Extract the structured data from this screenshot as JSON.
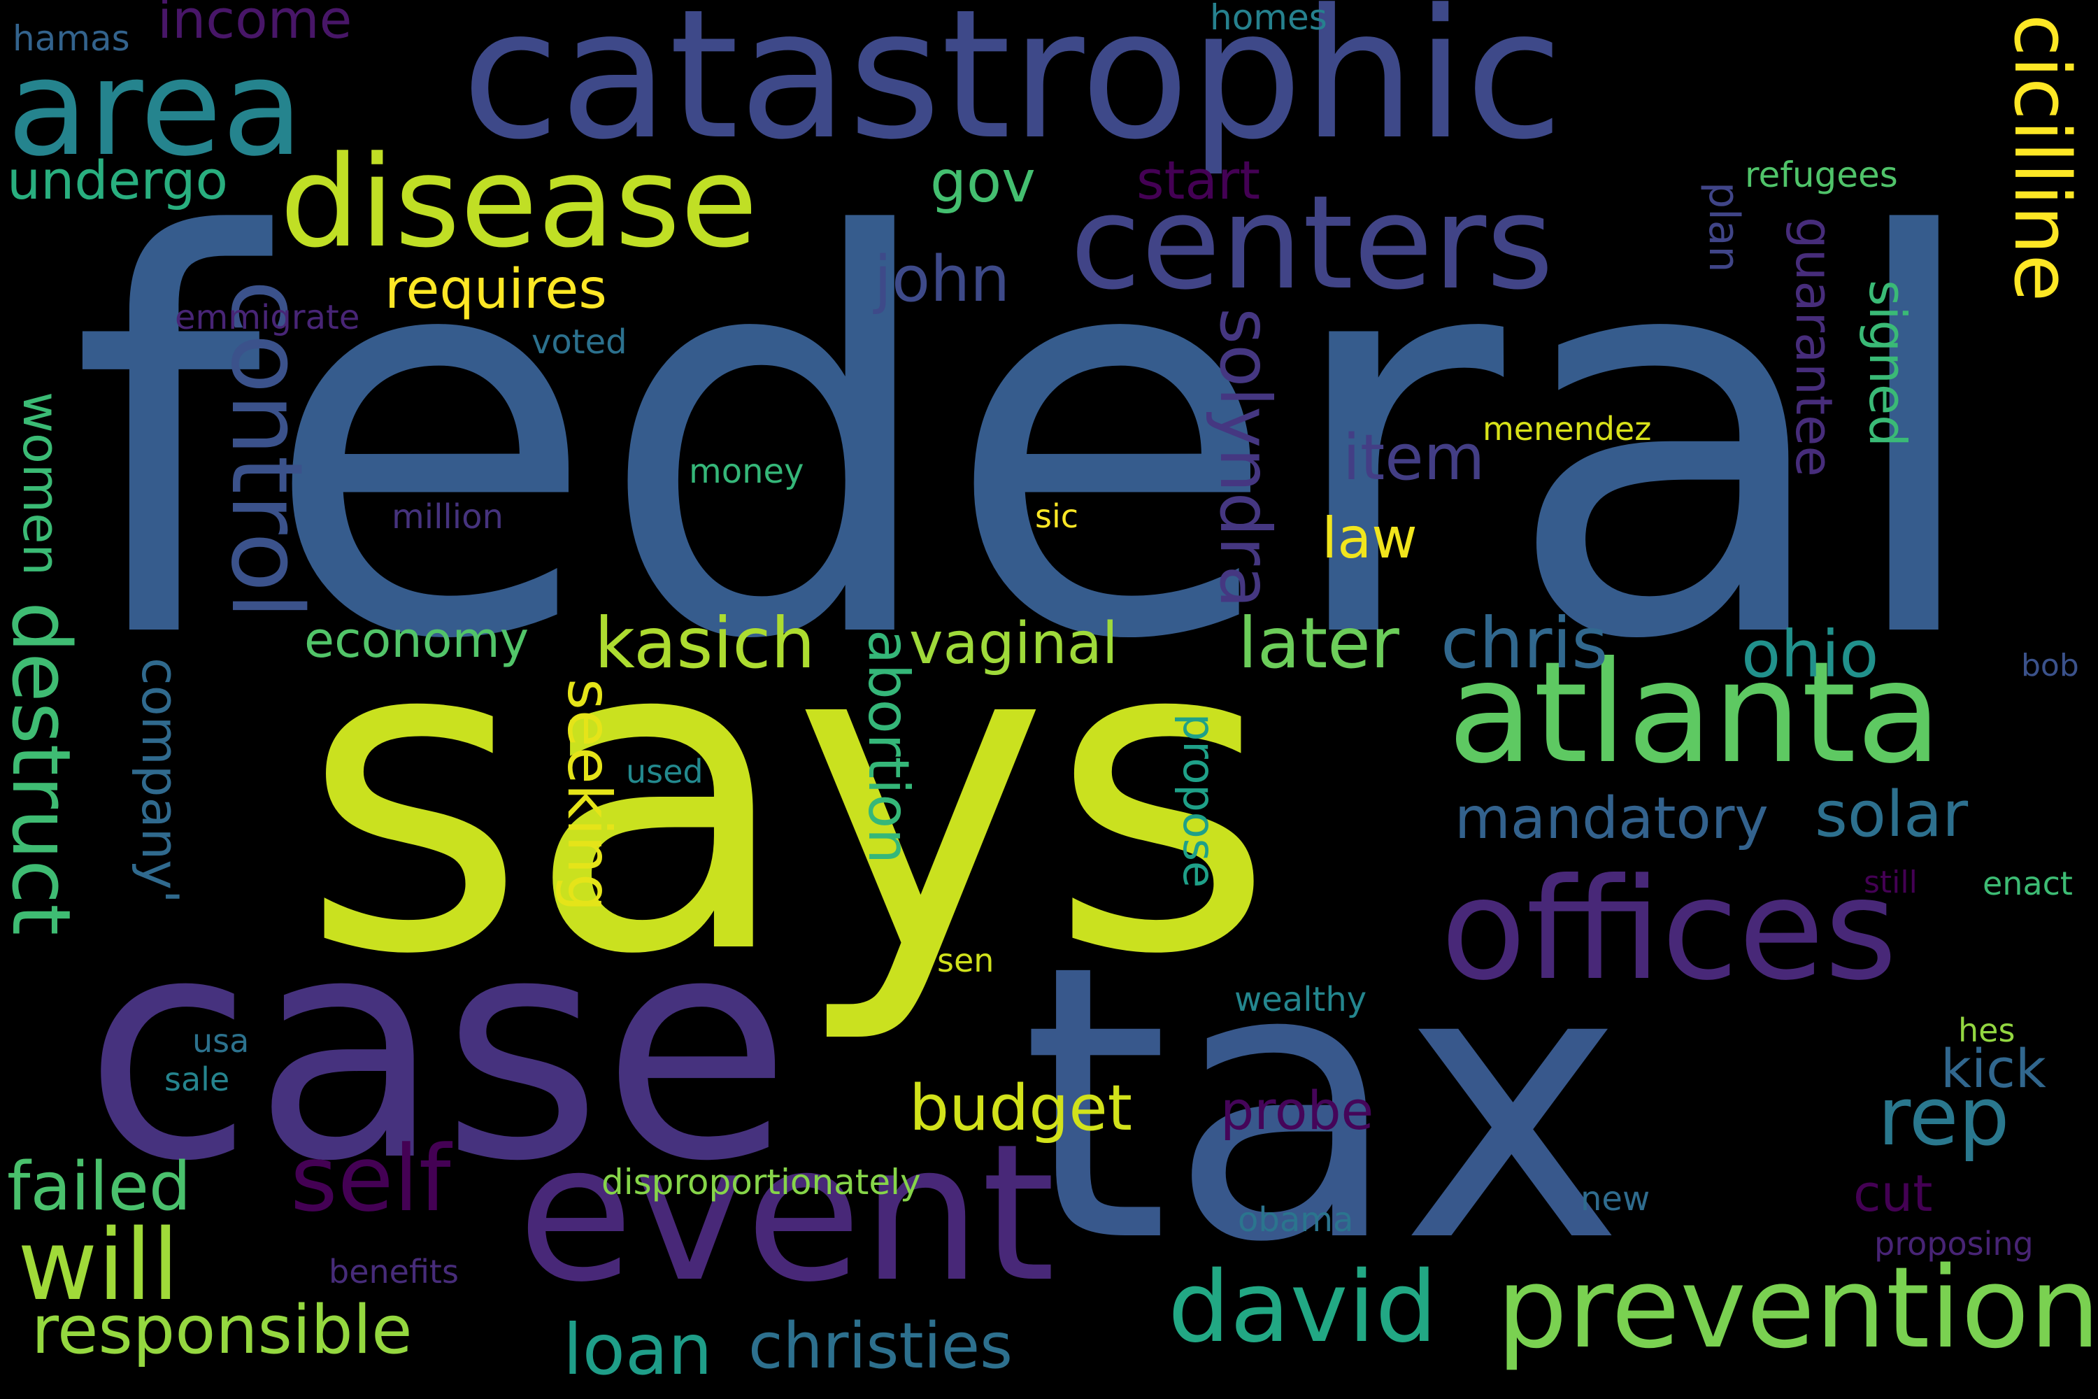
{
  "background": "#000000",
  "words": [
    {
      "text": "federal",
      "color": "#365c8d"
    },
    {
      "text": "says",
      "color": "#cae11f"
    },
    {
      "text": "tax",
      "color": "#38588c"
    },
    {
      "text": "case",
      "color": "#46327e"
    },
    {
      "text": "catastrophic",
      "color": "#3e4989"
    },
    {
      "text": "event",
      "color": "#482878"
    },
    {
      "text": "area",
      "color": "#25848e"
    },
    {
      "text": "disease",
      "color": "#c0df25"
    },
    {
      "text": "centers",
      "color": "#414487"
    },
    {
      "text": "atlanta",
      "color": "#5ec962"
    },
    {
      "text": "offices",
      "color": "#482878"
    },
    {
      "text": "cicilline",
      "color": "#fde725"
    },
    {
      "text": "prevention",
      "color": "#7ad151"
    },
    {
      "text": "control",
      "color": "#3b528b"
    },
    {
      "text": "destruct",
      "color": "#3fbc73"
    },
    {
      "text": "david",
      "color": "#22a884"
    },
    {
      "text": "will",
      "color": "#a0da39"
    },
    {
      "text": "self",
      "color": "#440154"
    },
    {
      "text": "kasich",
      "color": "#addc30"
    },
    {
      "text": "later",
      "color": "#6ccd5a"
    },
    {
      "text": "chris",
      "color": "#31688e"
    },
    {
      "text": "ohio",
      "color": "#21918c"
    },
    {
      "text": "rep",
      "color": "#2a788e"
    },
    {
      "text": "failed",
      "color": "#4ac16d"
    },
    {
      "text": "responsible",
      "color": "#95d840"
    },
    {
      "text": "loan",
      "color": "#1f9e89"
    },
    {
      "text": "christies",
      "color": "#2d708e"
    },
    {
      "text": "budget",
      "color": "#d2e21b"
    },
    {
      "text": "vaginal",
      "color": "#9fda3a"
    },
    {
      "text": "requires",
      "color": "#fde725"
    },
    {
      "text": "john",
      "color": "#3e4a89"
    },
    {
      "text": "item",
      "color": "#433e85"
    },
    {
      "text": "solyndra",
      "color": "#453781"
    },
    {
      "text": "mandatory",
      "color": "#33628d"
    },
    {
      "text": "solar",
      "color": "#2d708e"
    },
    {
      "text": "seeking",
      "color": "#e5e419"
    },
    {
      "text": "abortion",
      "color": "#35b779"
    },
    {
      "text": "law",
      "color": "#f1e51d"
    },
    {
      "text": "undergo",
      "color": "#29af7f"
    },
    {
      "text": "gov",
      "color": "#44bf70"
    },
    {
      "text": "start",
      "color": "#440154"
    },
    {
      "text": "income",
      "color": "#481668"
    },
    {
      "text": "economy",
      "color": "#52c569"
    },
    {
      "text": "women",
      "color": "#3bbb75"
    },
    {
      "text": "company'",
      "color": "#306a8e"
    },
    {
      "text": "guarantee",
      "color": "#472d7b"
    },
    {
      "text": "signed",
      "color": "#3aba76"
    },
    {
      "text": "plan",
      "color": "#404588"
    },
    {
      "text": "propose",
      "color": "#1fa088"
    },
    {
      "text": "probe",
      "color": "#450559"
    },
    {
      "text": "kick",
      "color": "#31678e"
    },
    {
      "text": "cut",
      "color": "#440154"
    },
    {
      "text": "disproportionately",
      "color": "#86d549"
    },
    {
      "text": "hamas",
      "color": "#33638d"
    },
    {
      "text": "homes",
      "color": "#26818e"
    },
    {
      "text": "refugees",
      "color": "#50c46a"
    },
    {
      "text": "emmigrate",
      "color": "#482576"
    },
    {
      "text": "voted",
      "color": "#2c718e"
    },
    {
      "text": "menendez",
      "color": "#d8e219"
    },
    {
      "text": "money",
      "color": "#35b779"
    },
    {
      "text": "million",
      "color": "#46337e"
    },
    {
      "text": "sic",
      "color": "#fde725"
    },
    {
      "text": "used",
      "color": "#23898e"
    },
    {
      "text": "bob",
      "color": "#3b528b"
    },
    {
      "text": "still",
      "color": "#440154"
    },
    {
      "text": "enact",
      "color": "#3dbc74"
    },
    {
      "text": "sen",
      "color": "#d0e11c"
    },
    {
      "text": "wealthy",
      "color": "#24868e"
    },
    {
      "text": "usa",
      "color": "#2c728e"
    },
    {
      "text": "sale",
      "color": "#25848e"
    },
    {
      "text": "hes",
      "color": "#93d741"
    },
    {
      "text": "benefits",
      "color": "#472c7a"
    },
    {
      "text": "obama",
      "color": "#2b758e"
    },
    {
      "text": "new",
      "color": "#2f6c8e"
    },
    {
      "text": "proposing",
      "color": "#482475"
    }
  ]
}
